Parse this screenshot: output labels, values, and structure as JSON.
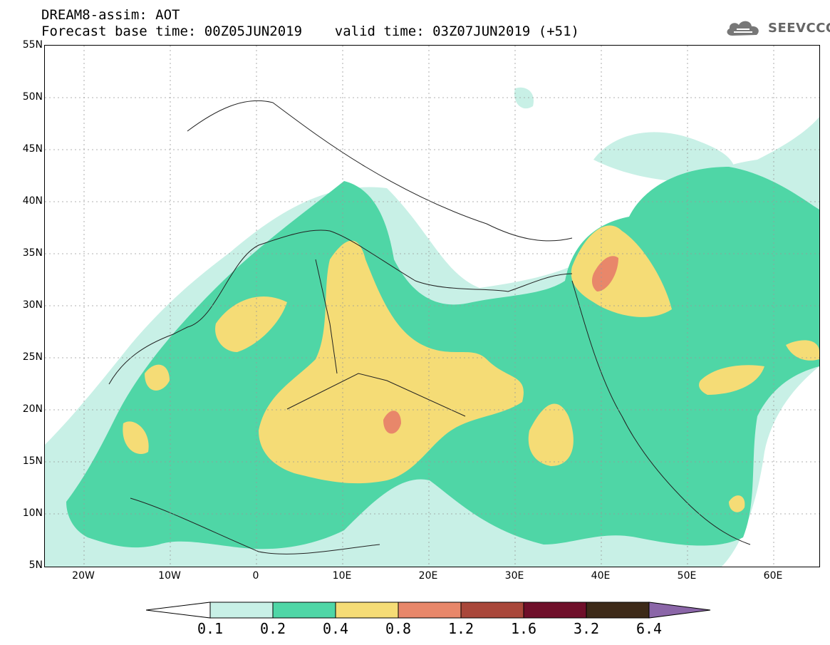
{
  "title": {
    "line1": "DREAM8-assim: AOT",
    "line2": "Forecast base time: 00Z05JUN2019    valid time: 03Z07JUN2019 (+51)"
  },
  "logo": {
    "text": "SEEVCCC",
    "icon": "cloud-icon"
  },
  "axes": {
    "lat_labels": [
      "55N",
      "50N",
      "45N",
      "40N",
      "35N",
      "30N",
      "25N",
      "20N",
      "15N",
      "10N",
      "5N"
    ],
    "lon_labels": [
      "20W",
      "10W",
      "0",
      "10E",
      "20E",
      "30E",
      "40E",
      "50E",
      "60E"
    ],
    "lon_range": [
      -25,
      65
    ],
    "lat_range": [
      5,
      55
    ]
  },
  "colorbar": {
    "labels": [
      "0.1",
      "0.2",
      "0.4",
      "0.8",
      "1.2",
      "1.6",
      "3.2",
      "6.4"
    ],
    "colors": [
      "#ffffff",
      "#c8f0e6",
      "#4fd6a6",
      "#f5dc76",
      "#e8876a",
      "#a9473a",
      "#6f0f2a",
      "#3d2a18",
      "#8b66a8"
    ]
  }
}
